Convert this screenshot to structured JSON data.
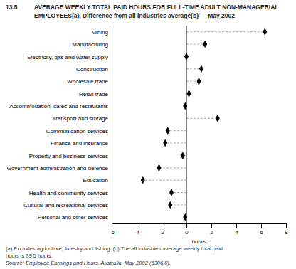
{
  "chart_data": {
    "type": "dot",
    "title": [
      "13.5",
      "AVERAGE WEEKLY TOTAL PAID HOURS FOR FULL-TIME ADULT NON-MANAGERIAL",
      "EMPLOYEES(a), Difference from all industries average(b) — May 2002"
    ],
    "annotations": [
      "(a)  Excludes agriculture, forestry and fishing.  (b)  The all industries average weekly total paid",
      "hours is 39.5 hours.",
      "Source: Employee Earnings and Hours, Australia, May 2002 (6306.0)."
    ],
    "categories": [
      "Mining",
      "Manufacturing",
      "Electricity, gas and water supply",
      "Construction",
      "Wholesale trade",
      "Retail trade",
      "Accommodation, cafes and restaurants",
      "Transport and storage",
      "Communication services",
      "Finance and insurance",
      "Property and business services",
      "Government administration and defence",
      "Education",
      "Health and community services",
      "Cultural and recreational services",
      "Personal and other services"
    ],
    "values": [
      6.3,
      1.5,
      0.0,
      1.2,
      1.0,
      0.2,
      -0.1,
      2.5,
      -1.5,
      -1.7,
      -0.3,
      -2.2,
      -3.5,
      -1.2,
      -1.3,
      -0.1
    ],
    "color": "#000000",
    "marker": "diamond",
    "line_style": "dashed",
    "xlabel": "hours",
    "xlim": [
      -6,
      8
    ],
    "xticks": [
      -6,
      -4,
      -2,
      0,
      2,
      4,
      6,
      8
    ],
    "grid": false
  }
}
